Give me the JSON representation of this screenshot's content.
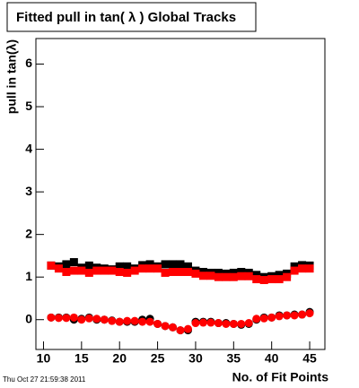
{
  "chart_data": {
    "type": "scatter",
    "title": "Fitted pull in tan( λ )  Global Tracks",
    "y_label": "pull in tan(λ)",
    "x_label": "No. of Fit Points",
    "timestamp": "Thu Oct 27 21:59:38 2011",
    "x": [
      11,
      12,
      13,
      14,
      15,
      16,
      17,
      18,
      19,
      20,
      21,
      22,
      23,
      24,
      25,
      26,
      27,
      28,
      29,
      30,
      31,
      32,
      33,
      34,
      35,
      36,
      37,
      38,
      39,
      40,
      41,
      42,
      43,
      44,
      45
    ],
    "series": [
      {
        "color": "#000000",
        "marker": "square",
        "values": [
          1.27,
          1.25,
          1.3,
          1.35,
          1.22,
          1.27,
          1.22,
          1.2,
          1.18,
          1.25,
          1.25,
          1.2,
          1.28,
          1.3,
          1.25,
          1.3,
          1.3,
          1.3,
          1.25,
          1.15,
          1.12,
          1.1,
          1.1,
          1.08,
          1.1,
          1.12,
          1.1,
          1.05,
          1.0,
          1.02,
          1.05,
          1.08,
          1.25,
          1.28,
          1.27
        ]
      },
      {
        "color": "#ff0000",
        "marker": "square",
        "values": [
          1.27,
          1.2,
          1.12,
          1.15,
          1.15,
          1.1,
          1.15,
          1.15,
          1.15,
          1.12,
          1.1,
          1.15,
          1.2,
          1.2,
          1.2,
          1.1,
          1.12,
          1.12,
          1.12,
          1.08,
          1.03,
          1.03,
          1.0,
          1.0,
          1.0,
          1.02,
          1.02,
          0.95,
          0.93,
          0.95,
          0.95,
          1.0,
          1.15,
          1.2,
          1.2
        ]
      },
      {
        "color": "#000000",
        "marker": "circle",
        "values": [
          0.05,
          0.05,
          0.05,
          0.0,
          0.02,
          0.05,
          0.0,
          0.0,
          -0.02,
          -0.05,
          -0.05,
          -0.05,
          0.0,
          0.02,
          -0.1,
          -0.15,
          -0.18,
          -0.25,
          -0.25,
          -0.05,
          -0.05,
          -0.05,
          -0.08,
          -0.08,
          -0.1,
          -0.12,
          -0.1,
          0.0,
          0.05,
          0.05,
          0.1,
          0.1,
          0.12,
          0.12,
          0.18
        ]
      },
      {
        "color": "#ff0000",
        "marker": "circle",
        "values": [
          0.05,
          0.04,
          0.04,
          0.05,
          0.0,
          0.03,
          0.02,
          0.0,
          -0.03,
          -0.05,
          -0.03,
          -0.03,
          -0.05,
          -0.05,
          -0.1,
          -0.15,
          -0.18,
          -0.25,
          -0.22,
          -0.08,
          -0.07,
          -0.07,
          -0.08,
          -0.1,
          -0.1,
          -0.1,
          -0.08,
          0.02,
          0.03,
          0.05,
          0.08,
          0.1,
          0.1,
          0.12,
          0.15
        ]
      }
    ],
    "xlim": [
      9,
      47
    ],
    "ylim": [
      -0.7,
      6.6
    ],
    "xticks": [
      10,
      15,
      20,
      25,
      30,
      35,
      40,
      45
    ],
    "yticks": [
      0,
      1,
      2,
      3,
      4,
      5,
      6
    ]
  }
}
